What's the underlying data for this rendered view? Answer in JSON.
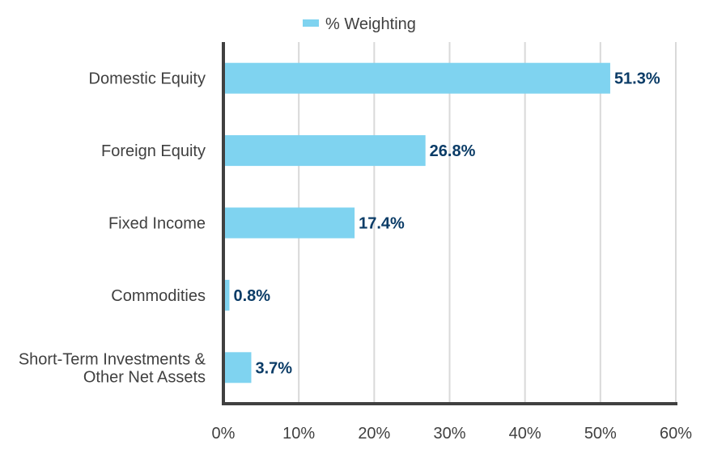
{
  "chart_data": {
    "type": "bar",
    "orientation": "horizontal",
    "categories": [
      [
        "Domestic Equity"
      ],
      [
        "Foreign Equity"
      ],
      [
        "Fixed Income"
      ],
      [
        "Commodities"
      ],
      [
        "Short-Term Investments &",
        "Other Net Assets"
      ]
    ],
    "series": [
      {
        "name": "% Weighting",
        "values": [
          51.3,
          26.8,
          17.4,
          0.8,
          3.7
        ],
        "labels": [
          "51.3%",
          "26.8%",
          "17.4%",
          "0.8%",
          "3.7%"
        ]
      }
    ],
    "xlim": [
      0,
      60
    ],
    "x_ticks": [
      0,
      10,
      20,
      30,
      40,
      50,
      60
    ],
    "x_tick_labels": [
      "0%",
      "10%",
      "20%",
      "30%",
      "40%",
      "50%",
      "60%"
    ],
    "grid": "vertical",
    "legend_position": "top-center",
    "colors": {
      "bar": "#7fd3f0",
      "data_label": "#0b3c67",
      "grid": "#d9d9d9",
      "axis": "#404040"
    }
  }
}
